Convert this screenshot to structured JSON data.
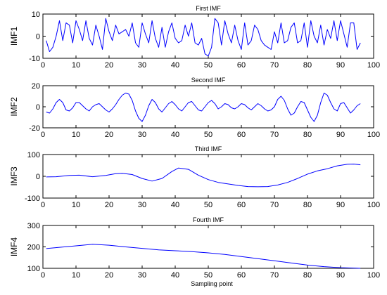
{
  "colors": {
    "line": "#0000ff",
    "axes": "#000000",
    "background": "#ffffff"
  },
  "chart_data": [
    {
      "type": "line",
      "title": "First IMF",
      "ylabel": "IMF1",
      "xlabel": "",
      "xlim": [
        0,
        100
      ],
      "ylim": [
        -10,
        10
      ],
      "xticks": [
        0,
        10,
        20,
        30,
        40,
        50,
        60,
        70,
        80,
        90,
        100
      ],
      "yticks": [
        -10,
        0,
        10
      ],
      "grid": false,
      "series": [
        {
          "x": [
            1,
            2,
            3,
            4,
            5,
            6,
            7,
            8,
            9,
            10,
            11,
            12,
            13,
            14,
            15,
            16,
            17,
            18,
            19,
            20,
            21,
            22,
            23,
            24,
            25,
            26,
            27,
            28,
            29,
            30,
            31,
            32,
            33,
            34,
            35,
            36,
            37,
            38,
            39,
            40,
            41,
            42,
            43,
            44,
            45,
            46,
            47,
            48,
            49,
            50,
            51,
            52,
            53,
            54,
            55,
            56,
            57,
            58,
            59,
            60,
            61,
            62,
            63,
            64,
            65,
            66,
            67,
            68,
            69,
            70,
            71,
            72,
            73,
            74,
            75,
            76,
            77,
            78,
            79,
            80,
            81,
            82,
            83,
            84,
            85,
            86,
            87,
            88,
            89,
            90,
            91,
            92,
            93,
            94,
            95,
            96
          ],
          "y": [
            -2,
            -7,
            -5,
            0,
            7,
            -2,
            6,
            5,
            -3,
            7,
            3,
            -2,
            7,
            -1,
            -4,
            5,
            0,
            -6,
            8,
            2,
            -2,
            5,
            1,
            2,
            3,
            0,
            6,
            -3,
            -5,
            6,
            1,
            -3,
            7,
            -1,
            -5,
            4,
            -5,
            2,
            6,
            -1,
            -3,
            -2,
            5,
            0,
            6,
            -3,
            -4,
            -1,
            -8,
            -9,
            -5,
            8,
            6,
            -4,
            7,
            1,
            -3,
            5,
            -2,
            -6,
            6,
            -4,
            -2,
            5,
            3,
            -2,
            -4,
            -5,
            -6,
            2,
            -3,
            6,
            -3,
            -2,
            4,
            6,
            -3,
            -2,
            6,
            -5,
            7,
            0,
            -3,
            5,
            -4,
            3,
            -1,
            7,
            -2,
            7,
            1,
            -5,
            6,
            6,
            -6,
            -3
          ]
        }
      ]
    },
    {
      "type": "line",
      "title": "Second IMF",
      "ylabel": "IMF2",
      "xlabel": "",
      "xlim": [
        0,
        100
      ],
      "ylim": [
        -20,
        20
      ],
      "xticks": [
        0,
        10,
        20,
        30,
        40,
        50,
        60,
        70,
        80,
        90,
        100
      ],
      "yticks": [
        -20,
        0,
        20
      ],
      "grid": false,
      "series": [
        {
          "x": [
            1,
            2,
            3,
            4,
            5,
            6,
            7,
            8,
            9,
            10,
            11,
            12,
            13,
            14,
            15,
            16,
            17,
            18,
            19,
            20,
            21,
            22,
            23,
            24,
            25,
            26,
            27,
            28,
            29,
            30,
            31,
            32,
            33,
            34,
            35,
            36,
            37,
            38,
            39,
            40,
            41,
            42,
            43,
            44,
            45,
            46,
            47,
            48,
            49,
            50,
            51,
            52,
            53,
            54,
            55,
            56,
            57,
            58,
            59,
            60,
            61,
            62,
            63,
            64,
            65,
            66,
            67,
            68,
            69,
            70,
            71,
            72,
            73,
            74,
            75,
            76,
            77,
            78,
            79,
            80,
            81,
            82,
            83,
            84,
            85,
            86,
            87,
            88,
            89,
            90,
            91,
            92,
            93,
            94,
            95,
            96
          ],
          "y": [
            -5,
            -6,
            -2,
            4,
            7,
            4,
            -3,
            -4,
            -1,
            4,
            4,
            1,
            -2,
            -4,
            0,
            2,
            3,
            0,
            -3,
            -5,
            -2,
            2,
            7,
            11,
            13,
            12,
            6,
            -4,
            -11,
            -14,
            -8,
            1,
            7,
            4,
            -2,
            -5,
            -1,
            3,
            5,
            2,
            -2,
            -4,
            0,
            4,
            5,
            1,
            -3,
            -4,
            0,
            4,
            6,
            3,
            -2,
            0,
            3,
            2,
            -1,
            -2,
            0,
            3,
            2,
            -1,
            -3,
            0,
            3,
            1,
            -2,
            -4,
            -3,
            0,
            7,
            10,
            6,
            -2,
            -8,
            -6,
            0,
            5,
            4,
            -3,
            -10,
            -14,
            -8,
            4,
            13,
            11,
            4,
            -2,
            -4,
            3,
            4,
            -1,
            -6,
            -3,
            1,
            3
          ]
        }
      ]
    },
    {
      "type": "line",
      "title": "Third IMF",
      "ylabel": "IMF3",
      "xlabel": "",
      "xlim": [
        0,
        100
      ],
      "ylim": [
        -100,
        100
      ],
      "xticks": [
        0,
        10,
        20,
        30,
        40,
        50,
        60,
        70,
        80,
        90,
        100
      ],
      "yticks": [
        -100,
        0,
        100
      ],
      "grid": false,
      "series": [
        {
          "x": [
            1,
            4,
            8,
            11,
            15,
            19,
            22,
            24,
            27,
            30,
            33,
            36,
            39,
            41,
            44,
            47,
            50,
            53,
            56,
            59,
            62,
            65,
            68,
            71,
            74,
            77,
            80,
            83,
            86,
            89,
            92,
            94,
            96
          ],
          "y": [
            -3,
            -2,
            4,
            5,
            -2,
            4,
            12,
            14,
            8,
            -10,
            -22,
            -10,
            22,
            38,
            32,
            5,
            -15,
            -28,
            -35,
            -42,
            -47,
            -48,
            -47,
            -40,
            -28,
            -10,
            10,
            25,
            35,
            48,
            55,
            56,
            53
          ]
        }
      ]
    },
    {
      "type": "line",
      "title": "Fourth IMF",
      "ylabel": "IMF4",
      "xlabel": "Sampling point",
      "xlim": [
        0,
        100
      ],
      "ylim": [
        100,
        300
      ],
      "xticks": [
        0,
        10,
        20,
        30,
        40,
        50,
        60,
        70,
        80,
        90,
        100
      ],
      "yticks": [
        100,
        200,
        300
      ],
      "grid": false,
      "series": [
        {
          "x": [
            1,
            5,
            10,
            15,
            20,
            25,
            30,
            35,
            40,
            45,
            50,
            55,
            60,
            65,
            70,
            75,
            80,
            85,
            90,
            96
          ],
          "y": [
            192,
            198,
            205,
            212,
            208,
            200,
            193,
            186,
            182,
            178,
            172,
            165,
            155,
            145,
            135,
            125,
            115,
            108,
            103,
            100
          ]
        }
      ]
    }
  ]
}
